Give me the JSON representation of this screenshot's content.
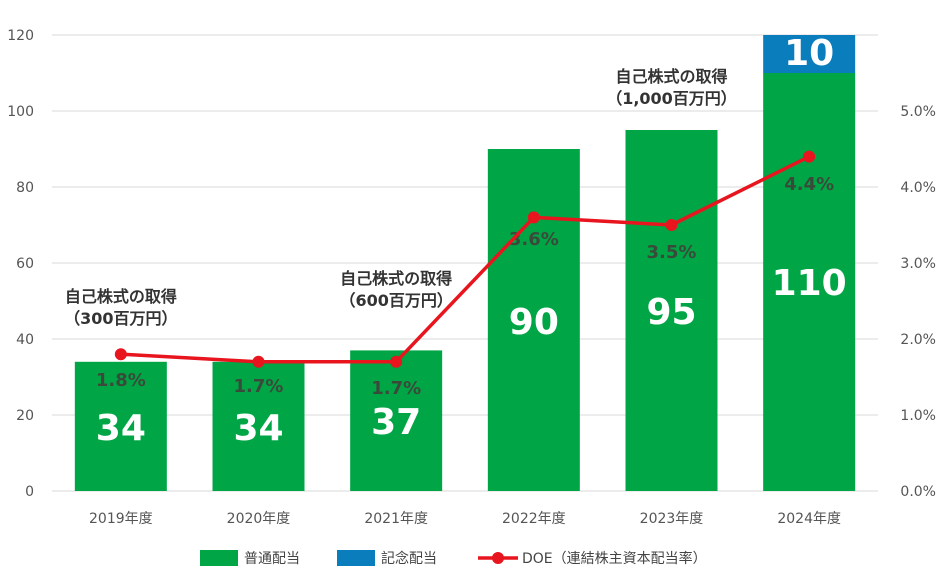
{
  "chart_data": {
    "type": "bar",
    "categories": [
      "2019年度",
      "2020年度",
      "2021年度",
      "2022年度",
      "2023年度",
      "2024年度"
    ],
    "series": [
      {
        "name": "普通配当",
        "type": "bar",
        "stack": "dividend",
        "values": [
          34,
          34,
          37,
          90,
          95,
          110
        ]
      },
      {
        "name": "記念配当",
        "type": "bar",
        "stack": "dividend",
        "values": [
          0,
          0,
          0,
          0,
          0,
          10
        ]
      },
      {
        "name": "DOE（連結株主資本配当率）",
        "type": "line",
        "axis": "right",
        "values": [
          1.8,
          1.7,
          1.7,
          3.6,
          3.5,
          4.4
        ],
        "labels": [
          "1.8%",
          "1.7%",
          "1.7%",
          "3.6%",
          "3.5%",
          "4.4%"
        ]
      }
    ],
    "bar_labels": [
      "34",
      "34",
      "37",
      "90",
      "95",
      "110"
    ],
    "commemorative_label": "10",
    "ylim": [
      0,
      120
    ],
    "yticks": [
      "0",
      "20",
      "40",
      "60",
      "80",
      "100",
      "120"
    ],
    "y2lim": [
      0,
      6
    ],
    "y2ticks": [
      "0.0%",
      "1.0%",
      "2.0%",
      "3.0%",
      "4.0%",
      "5.0%"
    ],
    "grid": true,
    "legend_position": "bottom",
    "annotations": [
      {
        "category": "2019年度",
        "lines": [
          "自己株式の取得",
          "（300百万円）"
        ]
      },
      {
        "category": "2021年度",
        "lines": [
          "自己株式の取得",
          "（600百万円）"
        ]
      },
      {
        "category": "2023年度",
        "lines": [
          "自己株式の取得",
          "（1,000百万円）"
        ]
      }
    ],
    "colors": {
      "regular": "#00a645",
      "commemorative": "#0a7dbd",
      "doe": "#e8141e",
      "grid": "#d9d9d9",
      "axis_text": "#555555"
    }
  }
}
